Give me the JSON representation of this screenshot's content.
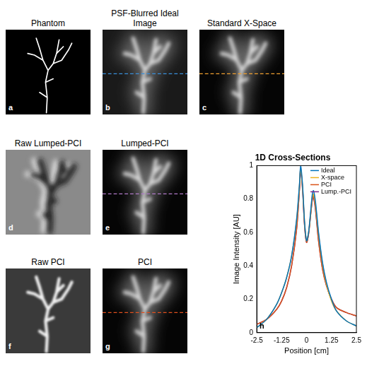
{
  "panels": [
    {
      "letter": "a",
      "title": "Phantom"
    },
    {
      "letter": "b",
      "title": "PSF-Blurred Ideal Image"
    },
    {
      "letter": "c",
      "title": "Standard X-Space"
    },
    {
      "letter": "d",
      "title": "Raw Lumped-PCI"
    },
    {
      "letter": "e",
      "title": "Lumped-PCI"
    },
    {
      "letter": "f",
      "title": "Raw PCI"
    },
    {
      "letter": "g",
      "title": "PCI"
    }
  ],
  "chart_data": {
    "letter": "h",
    "type": "line",
    "title": "1D Cross-Sections",
    "x_label": "Position [cm]",
    "y_label": "Image Intensity [AU]",
    "x": [
      -2.5,
      -2,
      -1.5,
      -1.25,
      -1,
      -0.75,
      -0.5,
      -0.35,
      -0.3,
      -0.2,
      -0.1,
      0,
      0.1,
      0.2,
      0.3,
      0.35,
      0.45,
      0.6,
      0.8,
      1,
      1.25,
      1.5,
      2,
      2.5
    ],
    "series": [
      {
        "name": "Ideal",
        "color": "#0072bd",
        "values": [
          0.03,
          0.08,
          0.17,
          0.24,
          0.33,
          0.46,
          0.68,
          0.9,
          1.0,
          0.88,
          0.66,
          0.55,
          0.6,
          0.72,
          0.84,
          0.85,
          0.78,
          0.6,
          0.42,
          0.3,
          0.2,
          0.13,
          0.07,
          0.04
        ]
      },
      {
        "name": "X-space",
        "color": "#edb120",
        "values": [
          0.03,
          0.08,
          0.17,
          0.24,
          0.33,
          0.46,
          0.67,
          0.89,
          0.98,
          0.87,
          0.66,
          0.55,
          0.6,
          0.71,
          0.82,
          0.83,
          0.76,
          0.59,
          0.41,
          0.29,
          0.19,
          0.13,
          0.07,
          0.04
        ]
      },
      {
        "name": "PCI",
        "color": "#d95319",
        "values": [
          0.05,
          0.08,
          0.14,
          0.19,
          0.27,
          0.4,
          0.62,
          0.87,
          0.98,
          0.86,
          0.64,
          0.54,
          0.59,
          0.7,
          0.81,
          0.82,
          0.74,
          0.55,
          0.38,
          0.28,
          0.2,
          0.15,
          0.12,
          0.1
        ]
      },
      {
        "name": "Lump.-PCI",
        "color": "#7e2f8e",
        "values": [
          0.05,
          0.08,
          0.14,
          0.19,
          0.27,
          0.4,
          0.62,
          0.87,
          0.97,
          0.85,
          0.64,
          0.54,
          0.59,
          0.7,
          0.8,
          0.81,
          0.73,
          0.55,
          0.38,
          0.28,
          0.2,
          0.15,
          0.12,
          0.1
        ]
      }
    ],
    "xlim": [
      -2.5,
      2.5
    ],
    "xticks": [
      -2.5,
      -1.25,
      0,
      1.25,
      2.5
    ],
    "ylim": [
      0,
      1
    ],
    "yticks": [
      0,
      0.2,
      0.4,
      0.6,
      0.8,
      1
    ],
    "grid": false,
    "legend": "upper right"
  }
}
